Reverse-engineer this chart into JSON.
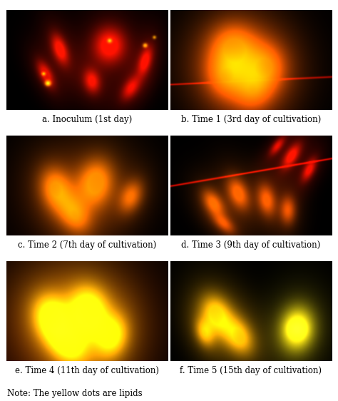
{
  "captions": [
    "a. Inoculum (1st day)",
    "b. Time 1 (3rd day of cultivation)",
    "c. Time 2 (7th day of cultivation)",
    "d. Time 3 (9th day of cultivation)",
    "e. Time 4 (11th day of cultivation)",
    "f. Time 5 (15th day of cultivation)"
  ],
  "note": "Note: The yellow dots are lipids",
  "figsize": [
    4.74,
    5.62
  ],
  "dpi": 100,
  "caption_fontsize": 8.5,
  "note_fontsize": 8.5,
  "bg_color": "#ffffff"
}
